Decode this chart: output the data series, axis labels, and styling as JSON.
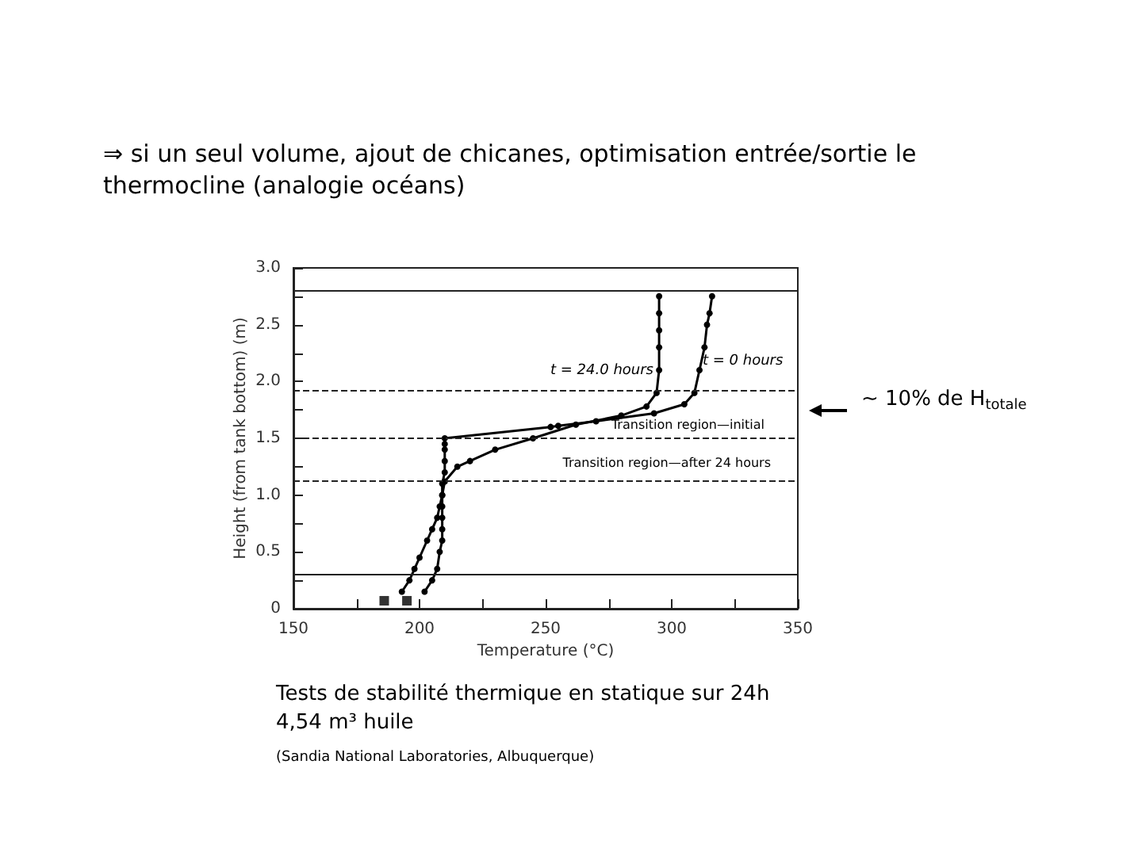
{
  "chart_data": {
    "type": "line",
    "title": "⇒ si un seul volume, ajout de chicanes, optimisation entrée/sortie le thermocline (analogie océans)",
    "xlabel": "Temperature (°C)",
    "ylabel": "Height (from tank bottom) (m)",
    "xlim": [
      150,
      350
    ],
    "ylim": [
      0,
      3
    ],
    "xticks": [
      150,
      {
        "value": 175,
        "label": null
      },
      200,
      {
        "value": 225,
        "label": null
      },
      250,
      {
        "value": 275,
        "label": null
      },
      300,
      {
        "value": 325,
        "label": null
      },
      350
    ],
    "yticks": [
      0,
      {
        "value": 0.25,
        "label": null
      },
      0.5,
      {
        "value": 0.75,
        "label": null
      },
      {
        "value": 1,
        "label": "1.0"
      },
      {
        "value": 1.25,
        "label": null
      },
      1.5,
      {
        "value": 1.75,
        "label": null
      },
      {
        "value": 2,
        "label": "2.0"
      },
      {
        "value": 2.25,
        "label": null
      },
      2.5,
      {
        "value": 2.75,
        "label": null
      },
      {
        "value": 3,
        "label": "3.0"
      }
    ],
    "grid": false,
    "marker": "circle",
    "line_style": "solid",
    "series": [
      {
        "color": "#000000",
        "x": [
          202,
          205,
          207,
          208,
          209,
          209,
          209,
          209,
          209,
          209,
          210,
          210,
          210,
          210,
          210,
          252,
          255,
          270,
          293,
          305,
          309,
          311,
          313,
          314,
          315,
          316
        ],
        "values": [
          0.15,
          0.25,
          0.35,
          0.5,
          0.6,
          0.7,
          0.8,
          0.9,
          1.0,
          1.1,
          1.2,
          1.3,
          1.4,
          1.45,
          1.5,
          1.6,
          1.61,
          1.65,
          1.72,
          1.8,
          1.9,
          2.1,
          2.3,
          2.5,
          2.6,
          2.75
        ]
      },
      {
        "color": "#000000",
        "x": [
          193,
          196,
          198,
          200,
          203,
          205,
          207,
          208,
          209,
          210,
          215,
          220,
          230,
          245,
          262,
          280,
          290,
          294,
          295,
          295,
          295,
          295,
          295
        ],
        "values": [
          0.15,
          0.25,
          0.35,
          0.45,
          0.6,
          0.7,
          0.8,
          0.9,
          1.0,
          1.12,
          1.25,
          1.3,
          1.4,
          1.5,
          1.62,
          1.7,
          1.78,
          1.9,
          2.1,
          2.3,
          2.45,
          2.6,
          2.75
        ]
      },
      {
        "type": "scatter",
        "marker": "square",
        "color": "#000000",
        "x": [
          186,
          195
        ],
        "values": [
          0.07,
          0.07
        ]
      }
    ],
    "ref_lines": [
      {
        "axis": "y",
        "value": 2.8,
        "line_style": "solid"
      },
      {
        "axis": "y",
        "value": 0.3,
        "line_style": "solid"
      },
      {
        "axis": "y",
        "value": 1.92,
        "line_style": "dashed"
      },
      {
        "axis": "y",
        "value": 1.5,
        "line_style": "dashed"
      },
      {
        "axis": "y",
        "value": 1.12,
        "line_style": "dashed"
      }
    ],
    "annotations": [
      "t = 24.0 hours",
      "t = 0 hours",
      "Transition region—initial",
      "Transition region—after 24 hours",
      "~ 10% de H$_{totale}$",
      "Tests de stabilité thermique en statique sur 24h",
      "4,54 m³ huile",
      "(Sandia National Laboratories, Albuquerque)"
    ]
  }
}
